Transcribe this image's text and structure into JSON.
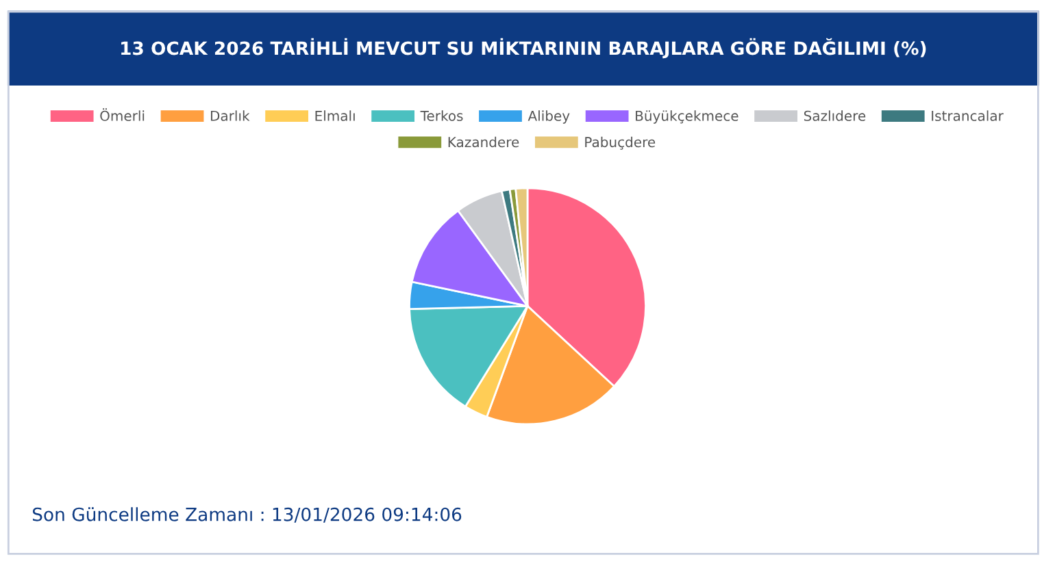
{
  "chart_data": {
    "type": "pie",
    "title": "13 OCAK 2026 TARİHLİ MEVCUT SU MİKTARININ BARAJLARA GÖRE DAĞILIMI (%)",
    "categories": [
      "Ömerli",
      "Darlık",
      "Elmalı",
      "Terkos",
      "Alibey",
      "Büyükçekmece",
      "Sazlıdere",
      "Istrancalar",
      "Kazandere",
      "Pabuçdere"
    ],
    "values": [
      36.9,
      18.7,
      3.2,
      15.8,
      3.7,
      11.7,
      6.5,
      1.1,
      0.8,
      1.6
    ],
    "colors": [
      "#ff6384",
      "#ff9f40",
      "#ffcd56",
      "#4bc0c0",
      "#36a2eb",
      "#9966ff",
      "#c9cbcf",
      "#3d7a80",
      "#8a9a3a",
      "#e6c77a"
    ],
    "legend": "top",
    "annotations": [
      "Son Güncelleme Zamanı : 13/01/2026 09:14:06"
    ]
  }
}
